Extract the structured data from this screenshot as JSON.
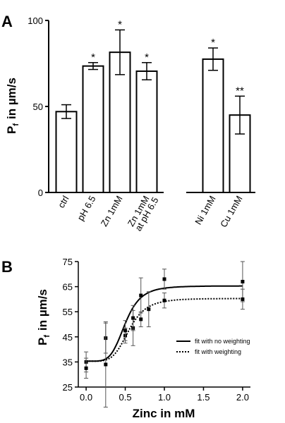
{
  "chart_data": [
    {
      "panel": "A",
      "type": "bar",
      "ylabel_main": "P",
      "ylabel_sub": "f",
      "ylabel_rest": "in µm/s",
      "ylim": [
        0,
        100
      ],
      "yticks": [
        "0",
        "50",
        "100"
      ],
      "groups": [
        {
          "categories": [
            {
              "label": "ctrl",
              "value": 47,
              "err": 4,
              "annotation": ""
            },
            {
              "label": "pH 6.5",
              "value": 73.5,
              "err": 2,
              "annotation": "*"
            },
            {
              "label": "Zn 1mM",
              "value": 81.5,
              "err": 13,
              "annotation": "*"
            },
            {
              "label": "Zn 1mM",
              "label2": "at pH 6.5",
              "value": 70.5,
              "err": 5,
              "annotation": "*"
            }
          ]
        },
        {
          "categories": [
            {
              "label": "Ni 1mM",
              "value": 77.5,
              "err": 6.5,
              "annotation": "*"
            },
            {
              "label": "Cu 1mM",
              "value": 45,
              "err": 11,
              "annotation": "**"
            }
          ]
        }
      ]
    },
    {
      "panel": "B",
      "type": "scatter",
      "xlabel": "Zinc in mM",
      "ylabel_main": "P",
      "ylabel_sub": "f",
      "ylabel_rest": "in µm/s",
      "xlim": [
        -0.1,
        2.1
      ],
      "ylim": [
        25,
        75
      ],
      "xticks": [
        "0.0",
        "0.5",
        "1.0",
        "1.5",
        "2.0"
      ],
      "yticks": [
        "25",
        "35",
        "45",
        "55",
        "65",
        "75"
      ],
      "points": [
        {
          "x": 0.0,
          "y": 35,
          "err": 4
        },
        {
          "x": 0.0,
          "y": 32.5,
          "err": 4
        },
        {
          "x": 0.25,
          "y": 44.5,
          "err": 6
        },
        {
          "x": 0.25,
          "y": 34,
          "err": 17
        },
        {
          "x": 0.5,
          "y": 45.5,
          "err": 3
        },
        {
          "x": 0.5,
          "y": 47.5,
          "err": 4
        },
        {
          "x": 0.6,
          "y": 48.5,
          "err": 7
        },
        {
          "x": 0.6,
          "y": 52.5,
          "err": 5
        },
        {
          "x": 0.7,
          "y": 61.5,
          "err": 7
        },
        {
          "x": 0.7,
          "y": 52,
          "err": 3
        },
        {
          "x": 0.8,
          "y": 56,
          "err": 7
        },
        {
          "x": 1.0,
          "y": 68,
          "err": 4
        },
        {
          "x": 1.0,
          "y": 59.5,
          "err": 3
        },
        {
          "x": 2.0,
          "y": 67,
          "err": 8
        },
        {
          "x": 2.0,
          "y": 60,
          "err": 4
        }
      ],
      "fits": [
        {
          "name": "fit with no weighting",
          "style": "solid",
          "bottom": 35.3,
          "top": 65.3,
          "ec50": 0.5,
          "hill": 5
        },
        {
          "name": "fit with weighting",
          "style": "dotted",
          "bottom": 35.3,
          "top": 60.3,
          "ec50": 0.55,
          "hill": 5
        }
      ]
    }
  ]
}
